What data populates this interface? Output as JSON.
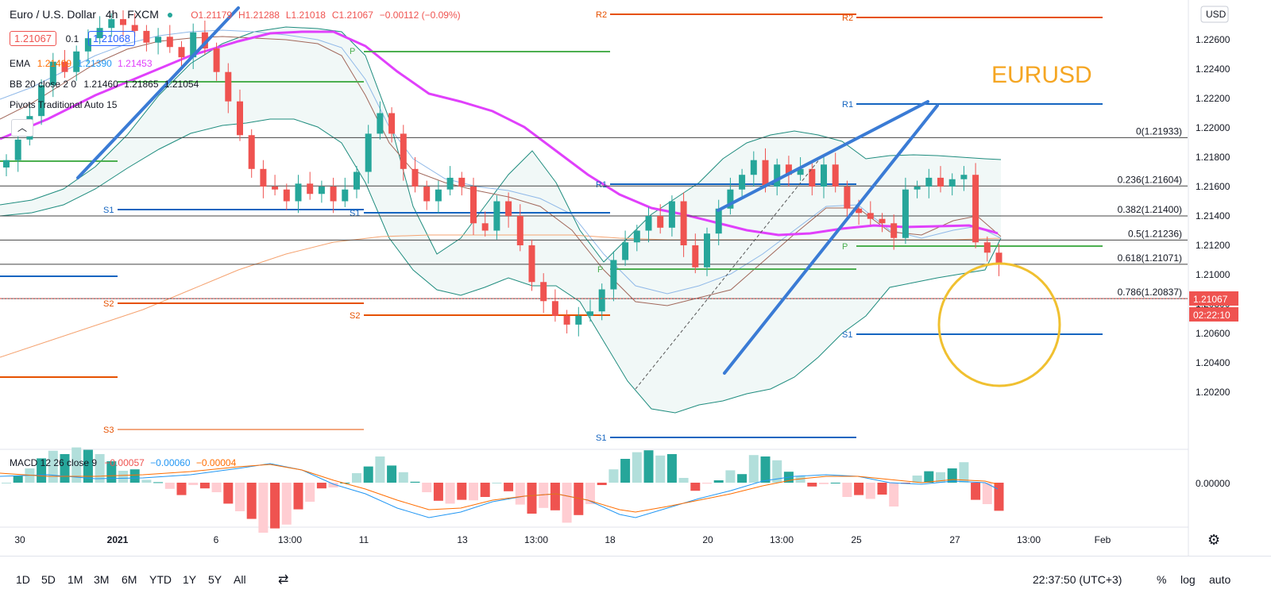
{
  "header": {
    "symbol": "Euro / U.S. Dollar",
    "interval": "4h",
    "source": "FXCM",
    "ohlc": {
      "o": "O1.21179",
      "h": "H1.21288",
      "l": "L1.21018",
      "c": "C1.21067",
      "chg": "−0.00112 (−0.09%)"
    },
    "bid": "1.21067",
    "spread": "0.1",
    "ask": "1.21068",
    "currency": "USD"
  },
  "legend": {
    "ema": {
      "name": "EMA",
      "v1": "1.21409",
      "v2": "1.21390",
      "v3": "1.21453"
    },
    "bb": {
      "name": "BB 20 close 2 0",
      "v1": "1.21460",
      "v2": "1.21865",
      "v3": "1.21054"
    },
    "pivots": {
      "name": "Pivots Traditional Auto 15"
    },
    "macd": {
      "name": "MACD 12 26 close 9",
      "v1": "−0.00057",
      "v2": "−0.00060",
      "v3": "−0.00004"
    }
  },
  "annotation": {
    "title": "EURUSD"
  },
  "colors": {
    "up": "#26a69a",
    "down": "#ef5350",
    "ema_pink": "#e040fb",
    "bb": "#1e8c7e",
    "fib": "#131722",
    "pivot_blue": "#1565c0",
    "pivot_green": "#4caf50",
    "pivot_orange": "#e65100",
    "trend": "#3a7bd5",
    "circle": "#f0c030",
    "annotation": "#f5a623"
  },
  "price_axis": {
    "ticks": [
      "1.22600",
      "1.22400",
      "1.22200",
      "1.22000",
      "1.21800",
      "1.21600",
      "1.21400",
      "1.21200",
      "1.21000",
      "1.20800",
      "1.20600",
      "1.20400",
      "1.20200"
    ],
    "last_price": "1.21067",
    "countdown": "02:22:10",
    "macd_tick": "0.00000"
  },
  "time_axis": [
    "30",
    "2021",
    "6",
    "13:00",
    "11",
    "13",
    "13:00",
    "18",
    "20",
    "13:00",
    "25",
    "27",
    "13:00",
    "Feb"
  ],
  "bottom": {
    "ranges": [
      "1D",
      "5D",
      "1M",
      "3M",
      "6M",
      "YTD",
      "1Y",
      "5Y",
      "All"
    ],
    "clock": "22:37:50 (UTC+3)",
    "pct": "%",
    "log": "log",
    "auto": "auto"
  },
  "chart_data": {
    "type": "candlestick",
    "title": "EURUSD",
    "ylim": [
      1.2,
      1.228
    ],
    "fib_levels": [
      {
        "label": "0(1.21933)",
        "value": 1.21933
      },
      {
        "label": "0.236(1.21604)",
        "value": 1.21604
      },
      {
        "label": "0.382(1.21400)",
        "value": 1.214
      },
      {
        "label": "0.5(1.21236)",
        "value": 1.21236
      },
      {
        "label": "0.618(1.21071)",
        "value": 1.21071
      },
      {
        "label": "0.786(1.20837)",
        "value": 1.20837
      }
    ],
    "pivot_labels": [
      "R2",
      "R1",
      "P",
      "S1",
      "S2",
      "S3"
    ],
    "closes": [
      1.2178,
      1.2192,
      1.2208,
      1.2229,
      1.2245,
      1.2238,
      1.2252,
      1.2261,
      1.2268,
      1.2274,
      1.227,
      1.2266,
      1.2258,
      1.2262,
      1.2255,
      1.2248,
      1.2265,
      1.2254,
      1.2238,
      1.2218,
      1.2195,
      1.2172,
      1.216,
      1.2158,
      1.215,
      1.2162,
      1.2155,
      1.216,
      1.215,
      1.2158,
      1.217,
      1.2196,
      1.221,
      1.2196,
      1.2172,
      1.216,
      1.215,
      1.2158,
      1.2166,
      1.216,
      1.2135,
      1.213,
      1.215,
      1.214,
      1.212,
      1.2095,
      1.2082,
      1.2072,
      1.2066,
      1.2072,
      1.2075,
      1.209,
      1.211,
      1.2122,
      1.213,
      1.214,
      1.2132,
      1.215,
      1.212,
      1.2105,
      1.2128,
      1.2145,
      1.2158,
      1.2168,
      1.2178,
      1.216,
      1.2175,
      1.2168,
      1.2172,
      1.216,
      1.2175,
      1.216,
      1.2145,
      1.2142,
      1.2138,
      1.2135,
      1.2125,
      1.2158,
      1.216,
      1.2166,
      1.216,
      1.2165,
      1.2168,
      1.2122,
      1.2115,
      1.2107
    ]
  }
}
